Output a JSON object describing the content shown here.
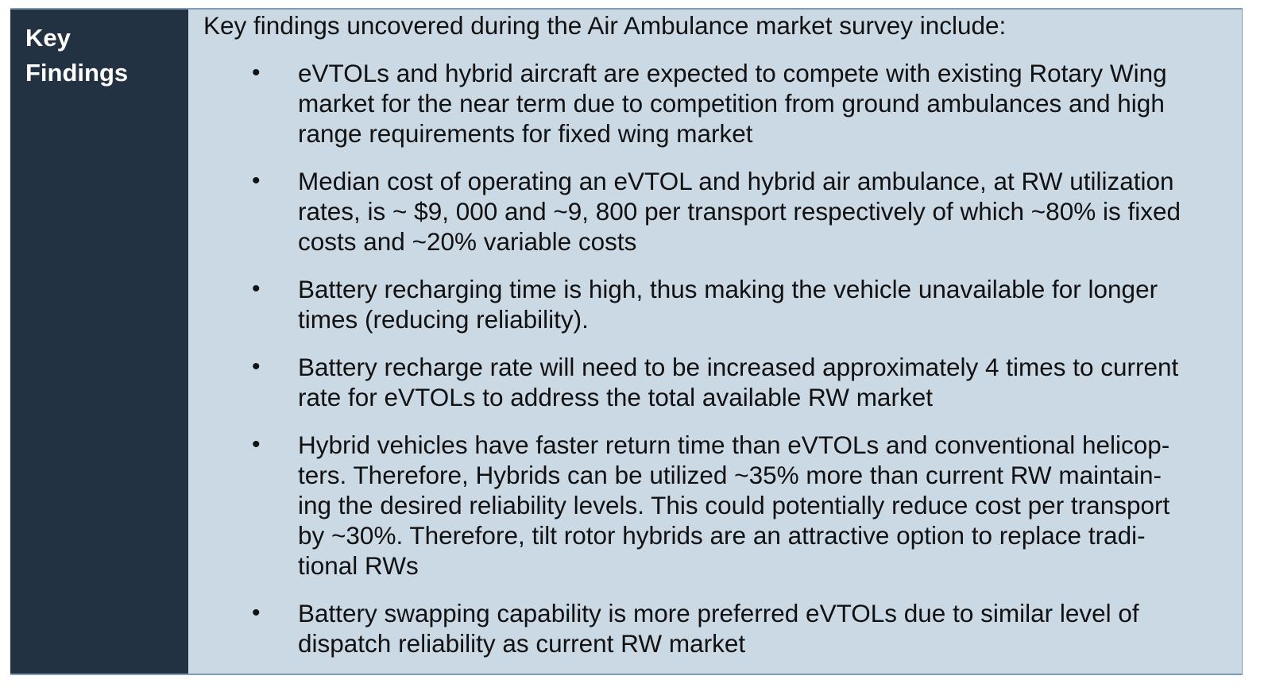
{
  "sidebar": {
    "title": "Key\nFindings"
  },
  "content": {
    "intro": "Key findings uncovered during the Air Ambulance market survey include:",
    "bullet_symbol": "•",
    "items": [
      {
        "text": "eVTOLs and hybrid aircraft are expected to compete with existing Rotary Wing\nmarket for the near term due to competition from ground ambulances and high\nrange requirements for fixed wing market"
      },
      {
        "text": "Median cost of operating an eVTOL and hybrid air ambulance, at RW utilization\nrates, is ~ $9, 000 and ~9, 800 per transport respectively of which ~80% is fixed\ncosts and ~20% variable costs"
      },
      {
        "text": "Battery recharging time is high, thus making the vehicle unavailable for longer\ntimes (reducing reliability)."
      },
      {
        "text": "Battery recharge rate will need to be increased approximately 4 times to current\nrate for eVTOLs to address the total available RW market"
      },
      {
        "text": "Hybrid vehicles have faster return time than eVTOLs and conventional helicop-\nters. Therefore, Hybrids can be utilized ~35% more than current RW maintain-\ning the desired reliability levels. This could potentially reduce cost per transport\nby ~30%. Therefore, tilt rotor hybrids are an attractive option to replace tradi-\ntional RWs"
      },
      {
        "text": "Battery swapping capability is more preferred eVTOLs due to similar level of\ndispatch reliability as current RW market"
      }
    ]
  },
  "colors": {
    "sidebar_bg": "#233242",
    "content_bg": "#cbd9e5",
    "border": "#7f9bb5"
  }
}
